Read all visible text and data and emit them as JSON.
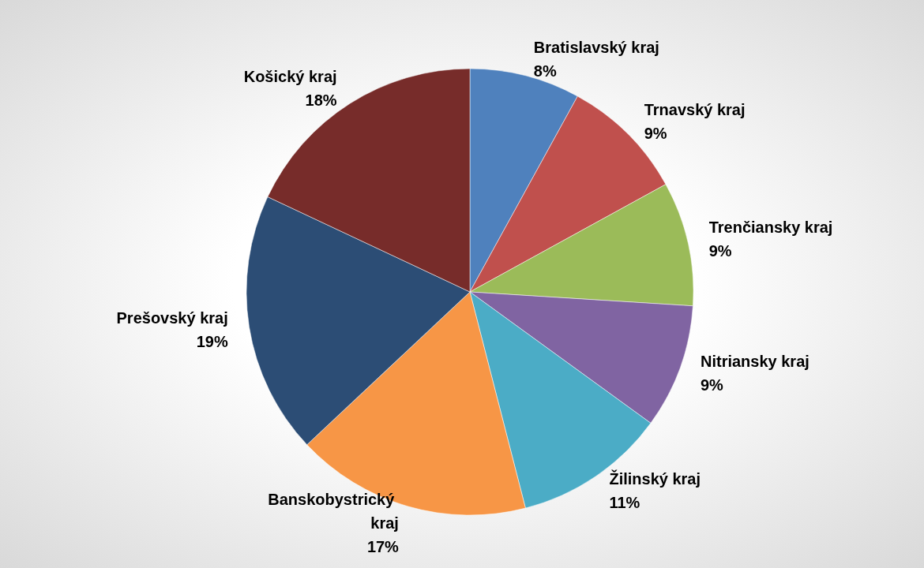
{
  "chart_data": {
    "type": "pie",
    "categories": [
      "Bratislavský kraj",
      "Trnavský kraj",
      "Trenčiansky kraj",
      "Nitriansky kraj",
      "Žilinský kraj",
      "Banskobystrický kraj",
      "Prešovský kraj",
      "Košický kraj"
    ],
    "values": [
      8,
      9,
      9,
      9,
      11,
      17,
      19,
      18
    ],
    "colors": [
      "#4f81bd",
      "#c0504d",
      "#9bbb59",
      "#8064a2",
      "#4bacc6",
      "#f79646",
      "#2c4d75",
      "#772c2a"
    ],
    "value_labels": [
      "8%",
      "9%",
      "9%",
      "9%",
      "11%",
      "17%",
      "19%",
      "18%"
    ],
    "legend": false
  }
}
